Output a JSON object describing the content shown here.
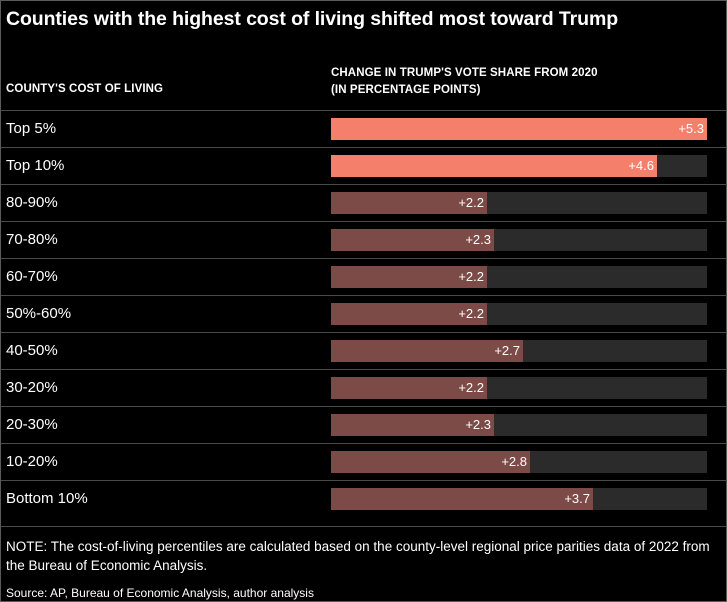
{
  "chart_data": {
    "type": "bar",
    "orientation": "horizontal",
    "title": "Counties with the highest cost of living shifted most toward Trump",
    "xlabel": "CHANGE IN TRUMP'S VOTE SHARE FROM 2020 (IN PERCENTAGE POINTS)",
    "ylabel": "COUNTY'S COST OF LIVING",
    "categories": [
      "Top 5%",
      "Top 10%",
      "80-90%",
      "70-80%",
      "60-70%",
      "50%-60%",
      "40-50%",
      "30-20%",
      "20-30%",
      "10-20%",
      "Bottom 10%"
    ],
    "values": [
      5.3,
      4.6,
      2.2,
      2.3,
      2.2,
      2.2,
      2.7,
      2.2,
      2.3,
      2.8,
      3.7
    ],
    "value_labels": [
      "+5.3",
      "+4.6",
      "+2.2",
      "+2.3",
      "+2.2",
      "+2.2",
      "+2.7",
      "+2.2",
      "+2.3",
      "+2.8",
      "+3.7"
    ],
    "highlighted": [
      "Top 5%",
      "Top 10%"
    ],
    "xlim": [
      0,
      5.3
    ],
    "grid": false,
    "legend": "none"
  },
  "header": {
    "left_label": "COUNTY'S COST OF LIVING",
    "right_label_line1": "CHANGE IN TRUMP'S VOTE SHARE FROM 2020",
    "right_label_line2": "(IN PERCENTAGE POINTS)"
  },
  "colors": {
    "highlight": "#f4806c",
    "bar": "#7d4b47",
    "track": "#2b2b2b",
    "background": "#000000",
    "text": "#ffffff"
  },
  "note": "NOTE: The cost-of-living percentiles are calculated based on the county-level regional price parities data of 2022 from the Bureau of Economic Analysis.",
  "source": "Source: AP, Bureau of Economic Analysis, author analysis"
}
